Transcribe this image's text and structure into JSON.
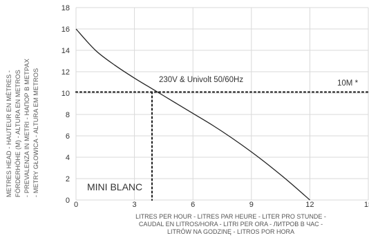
{
  "chart_data": {
    "type": "line",
    "x_ticks": [
      "0",
      "3",
      "6",
      "9",
      "12",
      "15"
    ],
    "y_ticks": [
      "0",
      "2",
      "4",
      "6",
      "8",
      "10",
      "12",
      "14",
      "16",
      "18"
    ],
    "xlim": [
      0,
      15
    ],
    "ylim": [
      0,
      18
    ],
    "grid": true,
    "xlabel": [
      "LITRES PER HOUR - LITRES PAR HEURE - LITER PRO STUNDE -",
      "CAUDAL EN LITROS/HORA - LITRI PER ORA - ЛИТРОВ В ЧАС -",
      "LITRÓW NA GODZINĘ - LITROS POR HORA"
    ],
    "ylabel": [
      "METRES HEAD - HAUTEUR EN MÈTRES -",
      "FÖRDERHÖHE (M) - ALTURA EN METROS",
      "- PREVALENZA IN METRI - НАПОР В МЕТРАХ",
      "- METRY GŁOWICA - ALTURA EM METROS"
    ],
    "series": [
      {
        "name": "MINI BLANC",
        "x": [
          0,
          1,
          2,
          3,
          4,
          5,
          6,
          7,
          8,
          9,
          10,
          11,
          12
        ],
        "y": [
          16.0,
          14.0,
          12.6,
          11.4,
          10.3,
          9.2,
          8.1,
          7.0,
          5.8,
          4.5,
          3.1,
          1.6,
          0.0
        ]
      }
    ],
    "reference_lines": [
      {
        "orientation": "horizontal",
        "value": 10.1,
        "label": "10M *"
      },
      {
        "orientation": "vertical",
        "value": 3.9
      }
    ],
    "annotations": [
      {
        "text": "230V & Univolt 50/60Hz"
      }
    ]
  }
}
